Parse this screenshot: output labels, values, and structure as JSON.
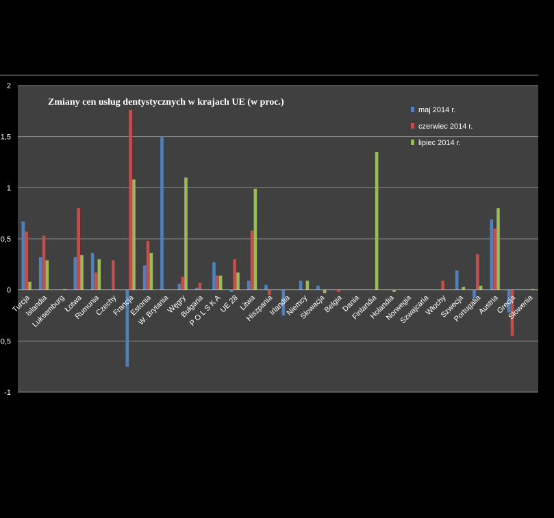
{
  "chart_data": {
    "type": "bar",
    "title": "Zmiany cen usług dentystycznych w krajach UE (w proc.)",
    "xlabel": "",
    "ylabel": "",
    "ylim": [
      -1,
      2
    ],
    "yticks": [
      {
        "value": 2,
        "label": "2"
      },
      {
        "value": 1.5,
        "label": "1,5"
      },
      {
        "value": 1,
        "label": "1"
      },
      {
        "value": 0.5,
        "label": "0,5"
      },
      {
        "value": 0,
        "label": "0"
      },
      {
        "value": -0.5,
        "label": "-0,5"
      },
      {
        "value": -1,
        "label": "-1"
      }
    ],
    "grid": true,
    "legend_position": "top-right",
    "categories": [
      "Turcja",
      "Islandia",
      "Luksemburg",
      "Łotwa",
      "Rumunia",
      "Czechy",
      "Francja",
      "Estonia",
      "W. Brytania",
      "Węgry",
      "Bułgaria",
      "P O L S K A",
      "UE 28",
      "Litwa",
      "Hiszpania",
      "Irlandia",
      "Niemcy",
      "Słowacja",
      "Belgia",
      "Dania",
      "Finlandia",
      "Holandia",
      "Norwegia",
      "Szwajcaria",
      "Włochy",
      "Szwecja",
      "Portugalia",
      "Austria",
      "Grecja",
      "Słowenia"
    ],
    "series": [
      {
        "name": "maj 2014 r.",
        "color": "#4f81bd",
        "values": [
          0.67,
          0.32,
          0,
          0.32,
          0.36,
          0,
          -0.75,
          0.24,
          1.5,
          0.06,
          0.02,
          0.27,
          -0.02,
          0.09,
          0.05,
          -0.25,
          0.09,
          0.04,
          0,
          0,
          0,
          0,
          0,
          0,
          0,
          0.19,
          -0.08,
          0.69,
          -0.22,
          0
        ]
      },
      {
        "name": "czerwiec 2014 r.",
        "color": "#c0504d",
        "values": [
          0.57,
          0.53,
          0,
          0.8,
          0.17,
          0.29,
          1.76,
          0.48,
          0,
          0.13,
          0.07,
          0.14,
          0.3,
          0.58,
          -0.05,
          0,
          0,
          0,
          -0.02,
          0,
          0,
          0,
          0,
          0,
          0.09,
          0,
          0.35,
          0.6,
          -0.45,
          0
        ]
      },
      {
        "name": "lipiec 2014 r.",
        "color": "#9bbb59",
        "values": [
          0.08,
          0.29,
          0.01,
          0.34,
          0.3,
          0,
          1.08,
          0.36,
          0,
          1.1,
          0,
          0.14,
          0.17,
          0.99,
          0,
          0,
          0.09,
          -0.03,
          0,
          0,
          1.35,
          -0.02,
          0,
          0,
          0,
          0.03,
          0.04,
          0.8,
          0,
          0.01
        ]
      }
    ]
  }
}
